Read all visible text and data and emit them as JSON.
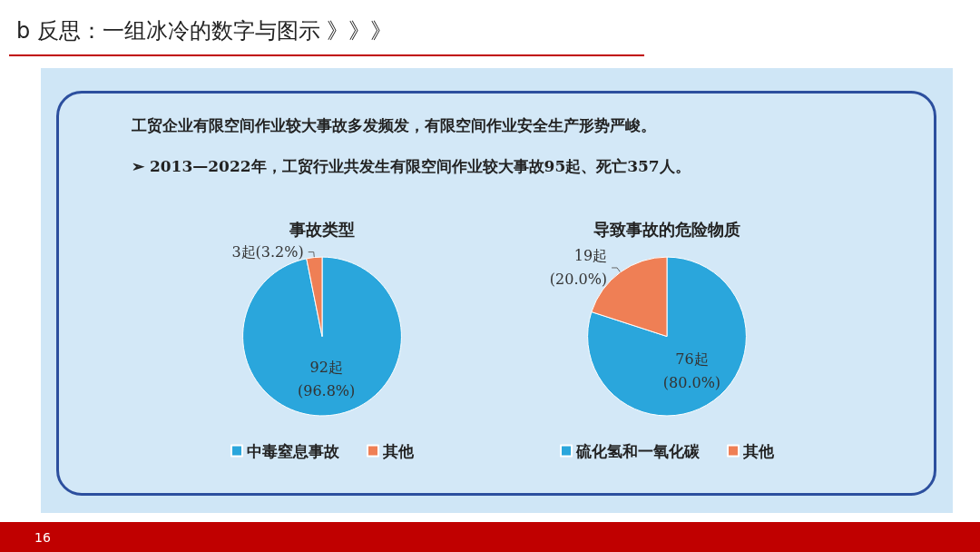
{
  "chart_data": [
    {
      "type": "pie",
      "title": "事故类型",
      "categories": [
        "中毒窒息事故",
        "其他"
      ],
      "values": [
        92,
        3
      ],
      "colors": [
        "#2aa6dc",
        "#ef7f55"
      ],
      "value_labels": [
        "92起\n(96.8%)",
        "3起(3.2%)"
      ],
      "legend": "bottom",
      "annotations": [
        "b  反思：一组冰冷的数字与图示  》》》",
        "工贸企业有限空间作业较大事故多发频发，有限空间作业安全生产形势严峻。",
        "➢ 2013—2022年，工贸行业共发生有限空间作业较大事故95起、死亡357人。",
        "16"
      ]
    },
    {
      "type": "pie",
      "title": "导致事故的危险物质",
      "categories": [
        "硫化氢和一氧化碳",
        "其他"
      ],
      "values": [
        76,
        19
      ],
      "colors": [
        "#2aa6dc",
        "#ef7f55"
      ],
      "value_labels": [
        "76起\n(80.0%)",
        "19起\n(20.0%)"
      ],
      "legend": "bottom"
    }
  ]
}
